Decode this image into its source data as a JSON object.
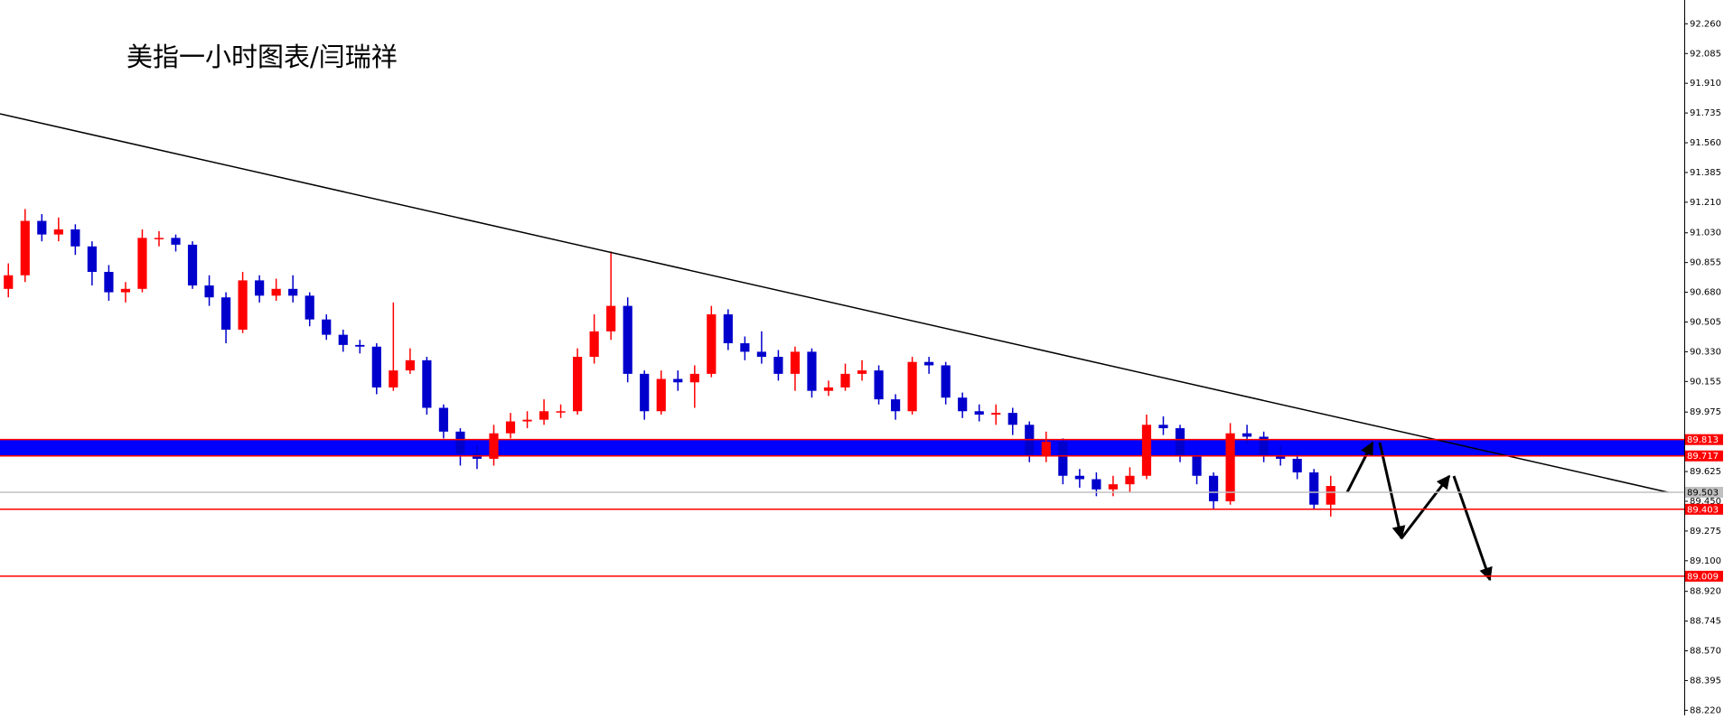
{
  "chart_data": {
    "type": "candlestick",
    "title": "美指一小时图表/闫瑞祥",
    "up_color": "#ff0000",
    "down_color": "#0000cc",
    "ylim": [
      88.19,
      92.4
    ],
    "yticks": [
      {
        "value": 92.26,
        "label": "92.260"
      },
      92.085,
      {
        "value": 91.91,
        "label": "91.910"
      },
      91.735,
      {
        "value": 91.56,
        "label": "91.560"
      },
      91.385,
      {
        "value": 91.21,
        "label": "91.210"
      },
      {
        "value": 91.03,
        "label": "91.030"
      },
      90.855,
      {
        "value": 90.68,
        "label": "90.680"
      },
      90.505,
      {
        "value": 90.33,
        "label": "90.330"
      },
      90.155,
      89.975,
      89.625,
      {
        "value": 89.45,
        "label": "89.450"
      },
      89.275,
      {
        "value": 89.1,
        "label": "89.100"
      },
      {
        "value": 88.92,
        "label": "88.920"
      },
      88.745,
      {
        "value": 88.57,
        "label": "88.570"
      },
      88.395,
      {
        "value": 88.22,
        "label": "88.220"
      }
    ],
    "price_lines": [
      {
        "value": 89.813,
        "color": "#ff0000"
      },
      {
        "value": 89.717,
        "color": "#ff0000"
      },
      {
        "value": 89.503,
        "color": "#c0c0c0"
      },
      {
        "value": 89.403,
        "color": "#ff0000"
      },
      {
        "value": 89.009,
        "color": "#ff0000"
      }
    ],
    "band_color": "#0000ff",
    "candles": [
      [
        90.7,
        90.85,
        90.65,
        90.78
      ],
      [
        90.78,
        91.17,
        90.74,
        91.1
      ],
      [
        91.1,
        91.14,
        90.98,
        91.02
      ],
      [
        91.02,
        91.12,
        90.98,
        91.05
      ],
      [
        91.05,
        91.08,
        90.9,
        90.95
      ],
      [
        90.95,
        90.98,
        90.72,
        90.8
      ],
      [
        90.8,
        90.84,
        90.63,
        90.68
      ],
      [
        90.68,
        90.74,
        90.62,
        90.7
      ],
      [
        90.7,
        91.05,
        90.68,
        91.0
      ],
      [
        91.0,
        91.04,
        90.95,
        91.0
      ],
      [
        91.0,
        91.02,
        90.92,
        90.96
      ],
      [
        90.96,
        90.98,
        90.7,
        90.72
      ],
      [
        90.72,
        90.78,
        90.6,
        90.65
      ],
      [
        90.65,
        90.68,
        90.38,
        90.46
      ],
      [
        90.46,
        90.8,
        90.44,
        90.75
      ],
      [
        90.75,
        90.78,
        90.62,
        90.66
      ],
      [
        90.66,
        90.76,
        90.63,
        90.7
      ],
      [
        90.7,
        90.78,
        90.62,
        90.66
      ],
      [
        90.66,
        90.68,
        90.48,
        90.52
      ],
      [
        90.52,
        90.55,
        90.4,
        90.43
      ],
      [
        90.43,
        90.46,
        90.33,
        90.37
      ],
      [
        90.37,
        90.4,
        90.32,
        90.36
      ],
      [
        90.36,
        90.38,
        90.08,
        90.12
      ],
      [
        90.12,
        90.62,
        90.1,
        90.22
      ],
      [
        90.22,
        90.35,
        90.2,
        90.28
      ],
      [
        90.28,
        90.3,
        89.96,
        90.0
      ],
      [
        90.0,
        90.02,
        89.82,
        89.86
      ],
      [
        89.86,
        89.88,
        89.66,
        89.73
      ],
      [
        89.73,
        89.78,
        89.64,
        89.7
      ],
      [
        89.7,
        89.9,
        89.66,
        89.85
      ],
      [
        89.85,
        89.97,
        89.82,
        89.92
      ],
      [
        89.92,
        89.98,
        89.88,
        89.93
      ],
      [
        89.93,
        90.05,
        89.9,
        89.98
      ],
      [
        89.98,
        90.02,
        89.94,
        89.98
      ],
      [
        89.98,
        90.35,
        89.96,
        90.3
      ],
      [
        90.3,
        90.55,
        90.26,
        90.45
      ],
      [
        90.45,
        90.92,
        90.4,
        90.6
      ],
      [
        90.6,
        90.65,
        90.15,
        90.2
      ],
      [
        90.2,
        90.22,
        89.93,
        89.98
      ],
      [
        89.98,
        90.22,
        89.96,
        90.17
      ],
      [
        90.17,
        90.22,
        90.1,
        90.15
      ],
      [
        90.15,
        90.25,
        90.0,
        90.2
      ],
      [
        90.2,
        90.6,
        90.18,
        90.55
      ],
      [
        90.55,
        90.58,
        90.34,
        90.38
      ],
      [
        90.38,
        90.42,
        90.28,
        90.33
      ],
      [
        90.33,
        90.45,
        90.26,
        90.3
      ],
      [
        90.3,
        90.34,
        90.16,
        90.2
      ],
      [
        90.2,
        90.36,
        90.1,
        90.33
      ],
      [
        90.33,
        90.35,
        90.06,
        90.1
      ],
      [
        90.1,
        90.16,
        90.07,
        90.12
      ],
      [
        90.12,
        90.26,
        90.1,
        90.2
      ],
      [
        90.2,
        90.28,
        90.16,
        90.22
      ],
      [
        90.22,
        90.25,
        90.02,
        90.05
      ],
      [
        90.05,
        90.08,
        89.93,
        89.98
      ],
      [
        89.98,
        90.3,
        89.96,
        90.27
      ],
      [
        90.27,
        90.3,
        90.2,
        90.25
      ],
      [
        90.25,
        90.27,
        90.02,
        90.06
      ],
      [
        90.06,
        90.09,
        89.94,
        89.98
      ],
      [
        89.98,
        90.02,
        89.92,
        89.96
      ],
      [
        89.96,
        90.02,
        89.9,
        89.97
      ],
      [
        89.97,
        90.0,
        89.84,
        89.9
      ],
      [
        89.9,
        89.92,
        89.68,
        89.72
      ],
      [
        89.72,
        89.86,
        89.68,
        89.8
      ],
      [
        89.8,
        89.82,
        89.55,
        89.6
      ],
      [
        89.6,
        89.64,
        89.53,
        89.58
      ],
      [
        89.58,
        89.62,
        89.48,
        89.52
      ],
      [
        89.52,
        89.6,
        89.48,
        89.55
      ],
      [
        89.55,
        89.65,
        89.5,
        89.6
      ],
      [
        89.6,
        89.96,
        89.58,
        89.9
      ],
      [
        89.9,
        89.95,
        89.84,
        89.88
      ],
      [
        89.88,
        89.9,
        89.68,
        89.72
      ],
      [
        89.72,
        89.74,
        89.55,
        89.6
      ],
      [
        89.6,
        89.62,
        89.4,
        89.45
      ],
      [
        89.45,
        89.91,
        89.43,
        89.85
      ],
      [
        89.85,
        89.9,
        89.79,
        89.83
      ],
      [
        89.83,
        89.86,
        89.68,
        89.72
      ],
      [
        89.72,
        89.78,
        89.66,
        89.7
      ],
      [
        89.7,
        89.74,
        89.58,
        89.62
      ],
      [
        89.62,
        89.64,
        89.4,
        89.43
      ],
      [
        89.43,
        89.6,
        89.36,
        89.54
      ]
    ]
  }
}
